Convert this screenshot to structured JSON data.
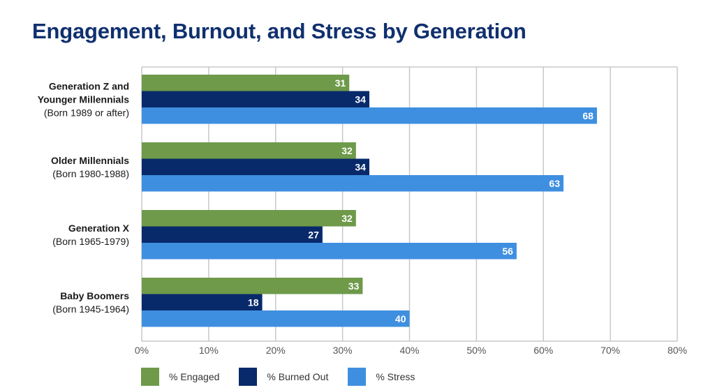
{
  "chart_data": {
    "type": "bar",
    "orientation": "horizontal",
    "title": "Engagement, Burnout, and Stress by Generation",
    "categories": [
      {
        "lines": [
          "Generation Z and",
          "Younger Millennials"
        ],
        "sub": "(Born 1989 or after)"
      },
      {
        "lines": [
          "Older Millennials"
        ],
        "sub": "(Born 1980-1988)"
      },
      {
        "lines": [
          "Generation X"
        ],
        "sub": "(Born 1965-1979)"
      },
      {
        "lines": [
          "Baby Boomers"
        ],
        "sub": "(Born 1945-1964)"
      }
    ],
    "series": [
      {
        "name": "% Engaged",
        "color": "#6e9a49",
        "values": [
          31,
          32,
          32,
          33
        ]
      },
      {
        "name": "% Burned Out",
        "color": "#082a6a",
        "values": [
          34,
          34,
          27,
          18
        ]
      },
      {
        "name": "% Stress",
        "color": "#3f8fe0",
        "values": [
          68,
          63,
          56,
          40
        ]
      }
    ],
    "xlim": [
      0,
      80
    ],
    "xticks": [
      "0%",
      "10%",
      "20%",
      "30%",
      "40%",
      "50%",
      "60%",
      "70%",
      "80%"
    ],
    "grid": true,
    "legend_position": "bottom-left"
  }
}
